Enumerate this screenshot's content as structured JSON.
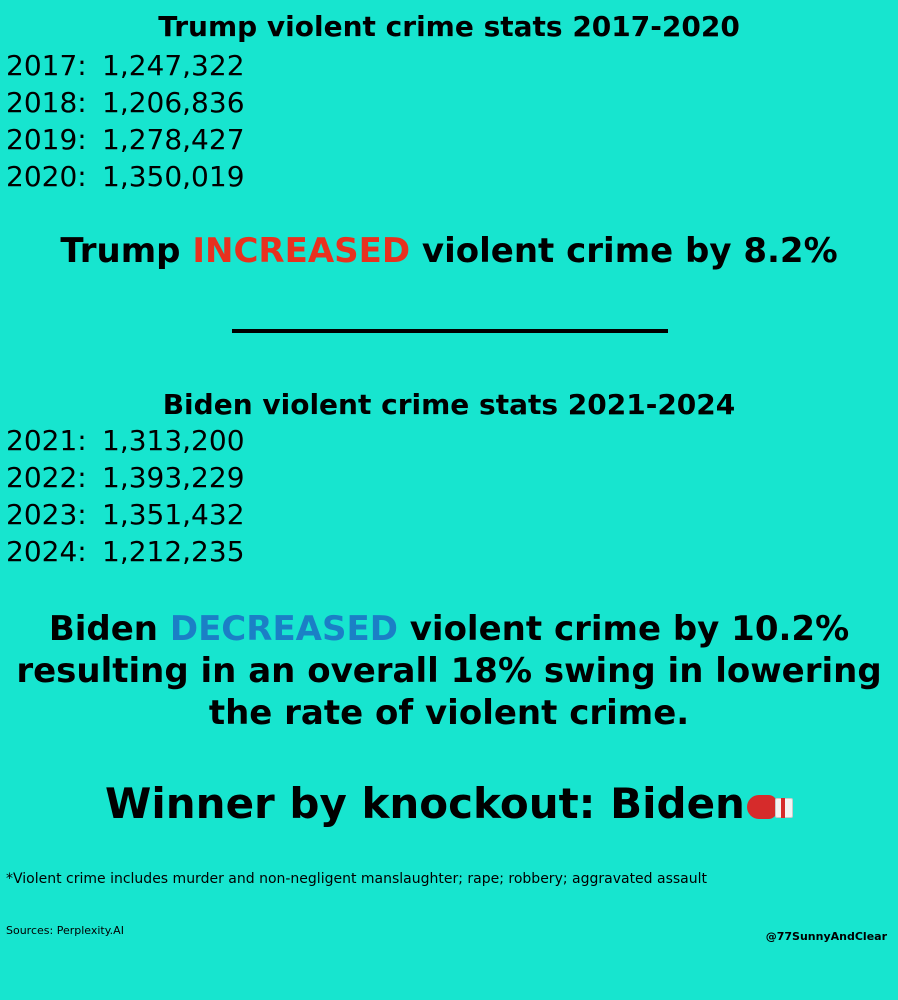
{
  "trump": {
    "heading": "Trump violent crime stats 2017-2020",
    "rows": [
      {
        "year": "2017:",
        "value": "1,247,322"
      },
      {
        "year": "2018:",
        "value": "1,206,836"
      },
      {
        "year": "2019:",
        "value": "1,278,427"
      },
      {
        "year": "2020:",
        "value": "1,350,019"
      }
    ],
    "summary_pre": "Trump ",
    "summary_keyword": "INCREASED",
    "summary_post": " violent crime by 8.2%"
  },
  "biden": {
    "heading": "Biden violent crime stats 2021-2024",
    "rows": [
      {
        "year": "2021:",
        "value": "1,313,200"
      },
      {
        "year": "2022:",
        "value": "1,393,229"
      },
      {
        "year": "2023:",
        "value": "1,351,432"
      },
      {
        "year": "2024:",
        "value": "1,212,235"
      }
    ],
    "summary_pre": "Biden ",
    "summary_keyword": "DECREASED",
    "summary_post": " violent crime by 10.2%",
    "summary_line2": "resulting in an overall 18% swing in lowering",
    "summary_line3": "the rate of violent crime."
  },
  "winner": {
    "text": "Winner by knockout: Biden",
    "icon": "boxing-glove-icon"
  },
  "footnote": "*Violent crime includes murder and non-negligent manslaughter; rape; robbery; aggravated assault",
  "sources": "Sources:  Perplexity.AI",
  "handle": "@77SunnyAndClear",
  "colors": {
    "background": "#17e5cf",
    "increase": "#e8311f",
    "decrease": "#1b7fc6"
  }
}
